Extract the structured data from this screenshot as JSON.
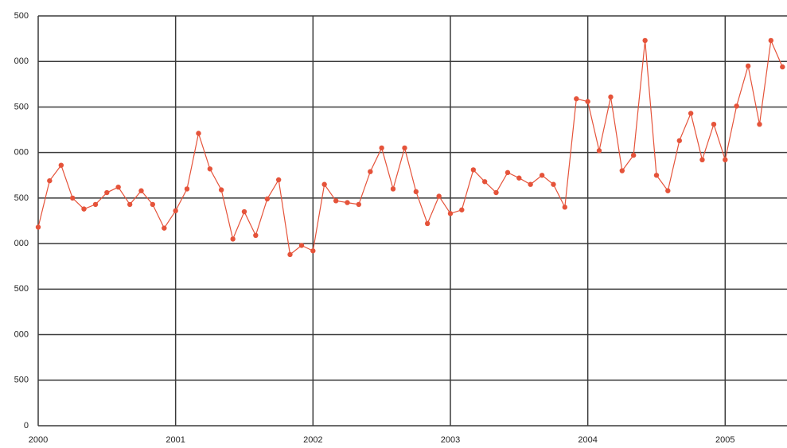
{
  "chart_data": {
    "type": "line",
    "x": [
      2000,
      2000.083,
      2000.167,
      2000.25,
      2000.333,
      2000.417,
      2000.5,
      2000.583,
      2000.667,
      2000.75,
      2000.833,
      2000.917,
      2001,
      2001.083,
      2001.167,
      2001.25,
      2001.333,
      2001.417,
      2001.5,
      2001.583,
      2001.667,
      2001.75,
      2001.833,
      2001.917,
      2002,
      2002.083,
      2002.167,
      2002.25,
      2002.333,
      2002.417,
      2002.5,
      2002.583,
      2002.667,
      2002.75,
      2002.833,
      2002.917,
      2003,
      2003.083,
      2003.167,
      2003.25,
      2003.333,
      2003.417,
      2003.5,
      2003.583,
      2003.667,
      2003.75,
      2003.833,
      2003.917,
      2004,
      2004.083,
      2004.167,
      2004.25,
      2004.333,
      2004.417,
      2004.5,
      2004.583,
      2004.667,
      2004.75,
      2004.833,
      2004.917,
      2005,
      2005.083,
      2005.167,
      2005.25,
      2005.333,
      2005.417
    ],
    "series": [
      {
        "color": "#e5533a",
        "values": [
          2180,
          2690,
          2860,
          2500,
          2380,
          2430,
          2560,
          2620,
          2430,
          2580,
          2430,
          2170,
          2360,
          2600,
          3210,
          2820,
          2590,
          2050,
          2350,
          2090,
          2490,
          2700,
          1880,
          1980,
          1920,
          2650,
          2470,
          2450,
          2430,
          2790,
          3050,
          2600,
          3050,
          2570,
          2220,
          2520,
          2330,
          2370,
          2810,
          2680,
          2560,
          2780,
          2720,
          2650,
          2750,
          2650,
          2400,
          3590,
          3560,
          3020,
          3610,
          2800,
          2970,
          4230,
          2750,
          2580,
          3130,
          3430,
          2920,
          3310,
          2920,
          3510,
          3950,
          3310,
          4230,
          3940
        ]
      }
    ],
    "xlim": [
      2000,
      2005.45
    ],
    "xticks": [
      2000,
      2001,
      2002,
      2003,
      2004,
      2005
    ],
    "ylim": [
      0,
      4500
    ],
    "yticks": [
      0,
      500,
      {
        "value": 1000,
        "label": "000"
      },
      {
        "value": 1500,
        "label": "500"
      },
      {
        "value": 2000,
        "label": "000"
      },
      {
        "value": 2500,
        "label": "500"
      },
      {
        "value": 3000,
        "label": "000"
      },
      {
        "value": 3500,
        "label": "500"
      },
      {
        "value": 4000,
        "label": "000"
      },
      {
        "value": 4500,
        "label": "500"
      }
    ],
    "grid": true
  }
}
